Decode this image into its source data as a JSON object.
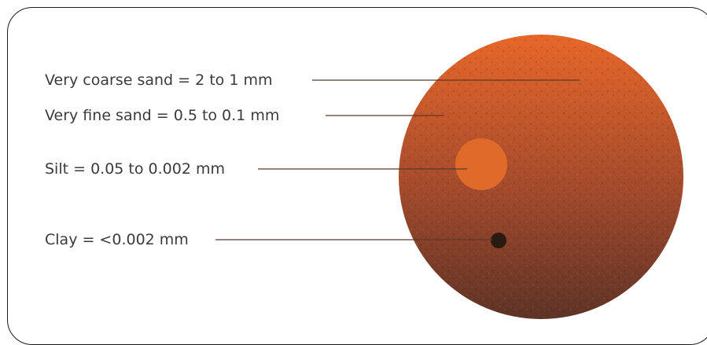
{
  "diagram": {
    "labels": {
      "very_coarse_sand": "Very coarse sand = 2 to 1 mm",
      "very_fine_sand": "Very fine sand = 0.5 to 0.1 mm",
      "silt": "Silt = 0.05 to 0.002 mm",
      "clay": "Clay = <0.002 mm"
    },
    "colors": {
      "sand_top": "#e7672a",
      "sand_bottom": "#5e3326",
      "silt": "#e06a2a",
      "clay": "#2c1a10",
      "leader_line": "#5b3a2a",
      "frame": "#1a1a1a"
    }
  }
}
